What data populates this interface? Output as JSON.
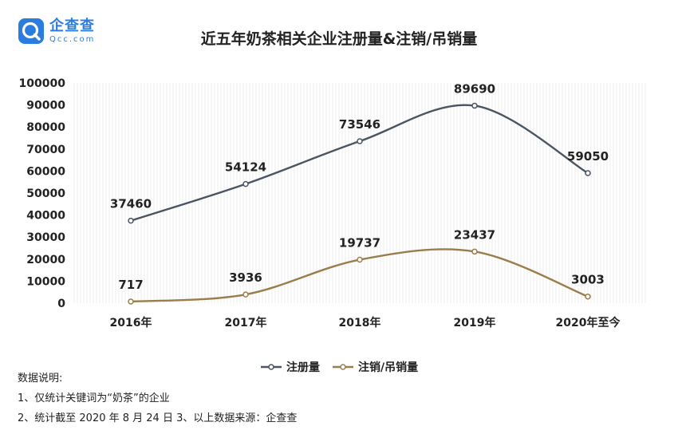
{
  "logo": {
    "name": "企查查",
    "sub": "Qcc.com"
  },
  "chart_data": {
    "type": "line",
    "title": "近五年奶茶相关企业注册量&注销/吊销量",
    "categories": [
      "2016年",
      "2017年",
      "2018年",
      "2019年",
      "2020年至今"
    ],
    "ylim": [
      0,
      100000
    ],
    "yticks": [
      0,
      10000,
      20000,
      30000,
      40000,
      50000,
      60000,
      70000,
      80000,
      90000,
      100000
    ],
    "grid": "vertical hatch",
    "legend_position": "bottom-center",
    "series": [
      {
        "name": "注册量",
        "values": [
          37460,
          54124,
          73546,
          89690,
          59050
        ],
        "color": "#4a5561"
      },
      {
        "name": "注销/吊销量",
        "values": [
          717,
          3936,
          19737,
          23437,
          3003
        ],
        "color": "#9a7d4b"
      }
    ]
  },
  "notes": {
    "heading": "数据说明:",
    "line1": "1、仅统计关键词为“奶茶”的企业",
    "line2": "2、统计截至 2020 年 8 月 24 日   3、以上数据来源：企查查"
  }
}
